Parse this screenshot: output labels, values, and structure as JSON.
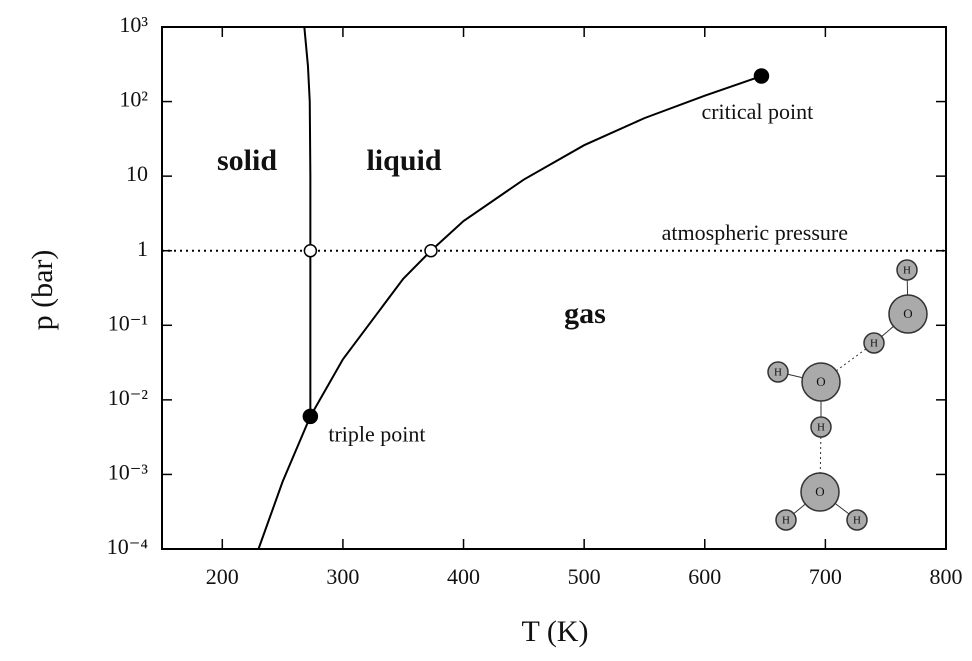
{
  "chart_data": {
    "type": "line",
    "x_label": "T (K)",
    "y_label": "p (bar)",
    "xlim": [
      150,
      800
    ],
    "ylim": [
      0.0001,
      1000
    ],
    "yscale": "log",
    "xticks": [
      200,
      300,
      400,
      500,
      600,
      700,
      800
    ],
    "yticks": [
      {
        "value": 0.0001,
        "label": "10⁻⁴"
      },
      {
        "value": 0.001,
        "label": "10⁻³"
      },
      {
        "value": 0.01,
        "label": "10⁻²"
      },
      {
        "value": 0.1,
        "label": "10⁻¹"
      },
      1,
      10,
      {
        "value": 100,
        "label": "10²"
      },
      {
        "value": 1000,
        "label": "10³"
      }
    ],
    "series": [
      {
        "color": "#000000",
        "x": [
          268,
          271,
          272.5,
          273,
          273,
          273
        ],
        "values": [
          1000,
          300,
          100,
          10,
          1,
          0.006
        ]
      },
      {
        "color": "#000000",
        "x": [
          230,
          250,
          273
        ],
        "values": [
          0.0001,
          0.0008,
          0.006
        ]
      },
      {
        "color": "#000000",
        "x": [
          273,
          300,
          350,
          373,
          400,
          450,
          500,
          550,
          600,
          647
        ],
        "values": [
          0.006,
          0.035,
          0.42,
          1,
          2.5,
          9,
          26,
          60,
          120,
          220
        ]
      }
    ],
    "points": [
      {
        "x": 273,
        "y": 0.006,
        "label": "triple point",
        "filled": true
      },
      {
        "x": 647,
        "y": 220,
        "label": "critical point",
        "filled": true
      },
      {
        "x": 273,
        "y": 1,
        "filled": false
      },
      {
        "x": 373,
        "y": 1,
        "filled": false
      }
    ],
    "reference_lines": [
      {
        "y": 1,
        "label": "atmospheric pressure",
        "style": "dotted"
      }
    ],
    "region_labels": [
      "solid",
      "liquid",
      "gas"
    ],
    "molecule_atoms": [
      "H",
      "O",
      "H",
      "O",
      "H",
      "H",
      "O",
      "H",
      "H"
    ]
  }
}
